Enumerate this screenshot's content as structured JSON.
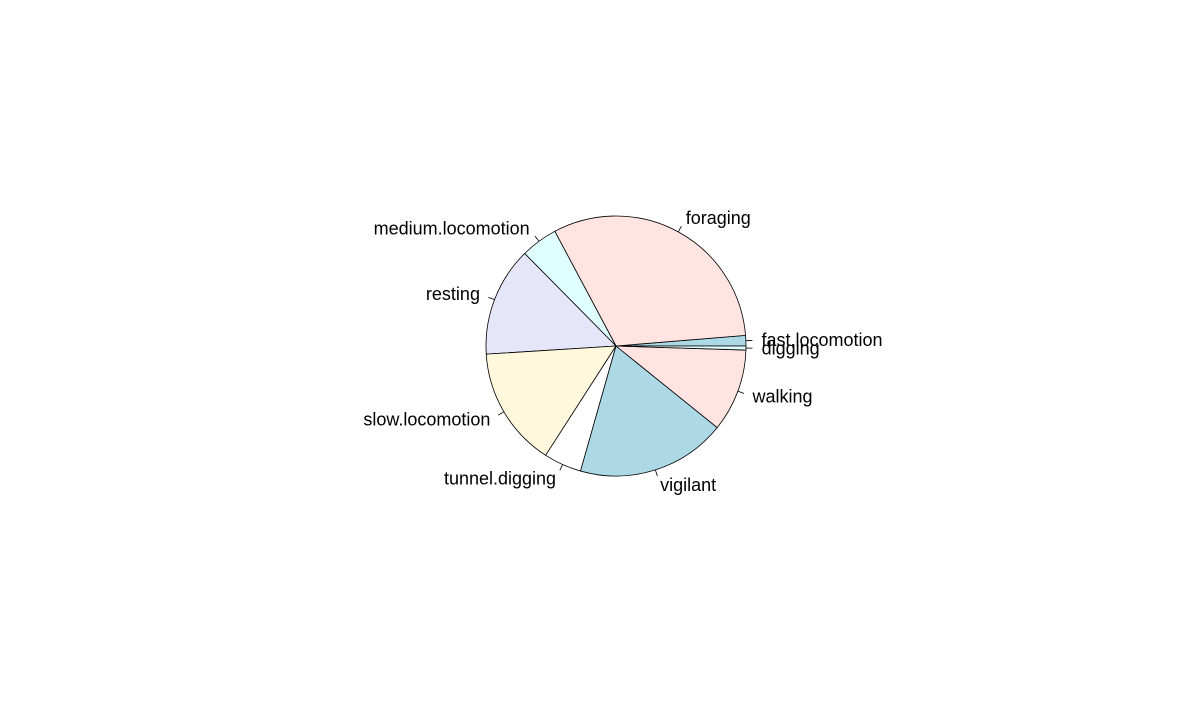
{
  "chart_data": {
    "type": "pie",
    "title": "",
    "start_angle_deg": 0,
    "direction": "counterclockwise",
    "slices": [
      {
        "label": "fast.locomotion",
        "value": 1.3,
        "color": "#add8e6"
      },
      {
        "label": "foraging",
        "value": 31.5,
        "color": "#ffe4e1"
      },
      {
        "label": "medium.locomotion",
        "value": 4.6,
        "color": "#e0ffff"
      },
      {
        "label": "resting",
        "value": 13.6,
        "color": "#e6e6fa"
      },
      {
        "label": "slow.locomotion",
        "value": 14.9,
        "color": "#fff8dc"
      },
      {
        "label": "tunnel.digging",
        "value": 4.7,
        "color": "#ffffff"
      },
      {
        "label": "vigilant",
        "value": 18.6,
        "color": "#add8e6"
      },
      {
        "label": "walking",
        "value": 10.3,
        "color": "#ffe4e1"
      },
      {
        "label": "digging",
        "value": 0.5,
        "color": "#e0ffff"
      }
    ]
  }
}
